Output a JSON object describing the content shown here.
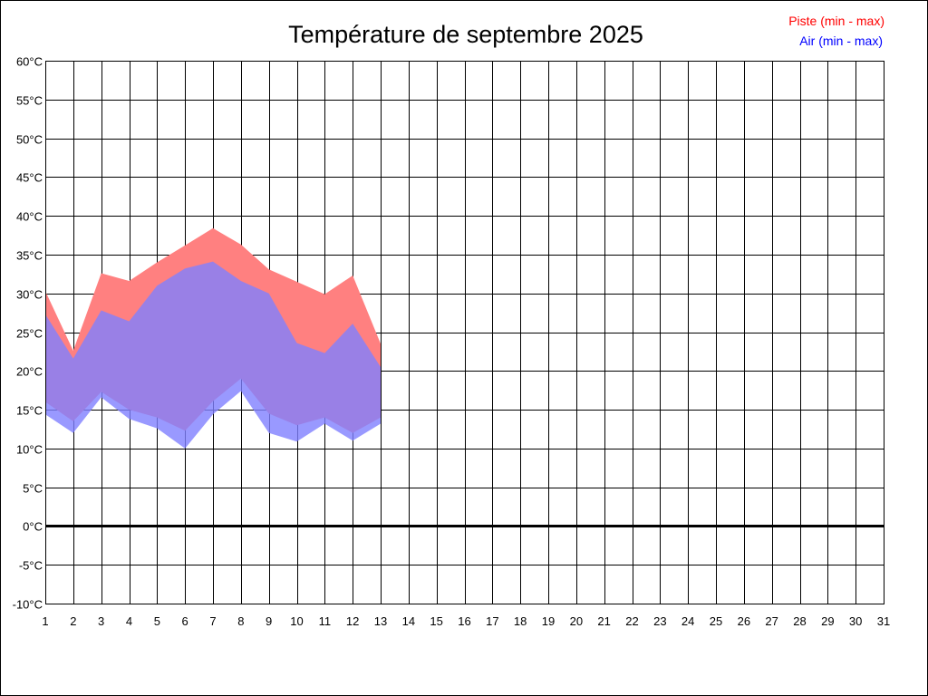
{
  "chart_data": {
    "type": "area",
    "title": "Température de septembre 2025",
    "xlabel": "",
    "ylabel": "",
    "y_unit": "°C",
    "xlim": [
      1,
      31
    ],
    "ylim": [
      -10,
      60
    ],
    "ytick_step": 5,
    "grid": true,
    "legend_position": "top-right",
    "x": [
      1,
      2,
      3,
      4,
      5,
      6,
      7,
      8,
      9,
      10,
      11,
      12,
      13,
      14,
      15,
      16,
      17,
      18,
      19,
      20,
      21,
      22,
      23,
      24,
      25,
      26,
      27,
      28,
      29,
      30,
      31
    ],
    "series": [
      {
        "name": "Piste (min - max)",
        "color": "#ff0000",
        "fill": "#ff8080",
        "min": [
          16,
          13.5,
          17.3,
          15,
          14,
          12.3,
          16.1,
          19,
          14.5,
          13,
          14,
          12,
          14
        ],
        "max": [
          30.3,
          22.6,
          32.6,
          31.6,
          34,
          36.2,
          38.4,
          36.3,
          33.1,
          31.5,
          29.9,
          32.3,
          23.5
        ]
      },
      {
        "name": "Air (min - max)",
        "color": "#0000ff",
        "fill": "#8080ff",
        "min": [
          14.4,
          12,
          16.6,
          13.8,
          12.6,
          10,
          14.4,
          17.4,
          12,
          10.9,
          13.2,
          11,
          13.2
        ],
        "max": [
          27.3,
          21.6,
          27.8,
          26.4,
          31,
          33.2,
          34.1,
          31.6,
          30,
          23.6,
          22.3,
          26.1,
          20.5
        ]
      }
    ]
  }
}
